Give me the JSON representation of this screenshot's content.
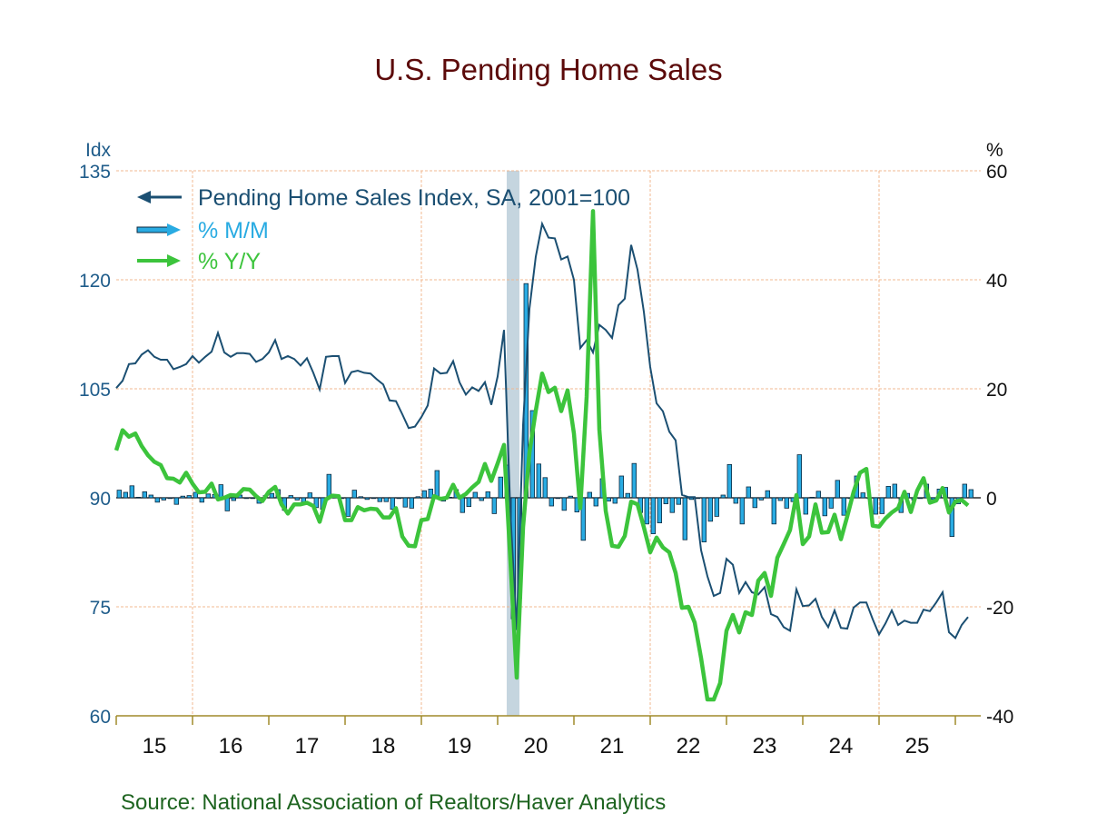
{
  "chart_data": {
    "type": "bar+line",
    "title": "U.S. Pending Home Sales",
    "source": "Source:  National Association of Realtors/Haver Analytics",
    "left_axis": {
      "unit_label": "Idx",
      "range": [
        60,
        135
      ],
      "ticks": [
        60,
        75,
        90,
        105,
        120,
        135
      ]
    },
    "right_axis": {
      "unit_label": "%",
      "range": [
        -40,
        60
      ],
      "ticks": [
        -40,
        -20,
        0,
        20,
        40,
        60
      ]
    },
    "x_axis": {
      "tick_labels": [
        "15",
        "16",
        "17",
        "18",
        "19",
        "20",
        "21",
        "22",
        "23",
        "24",
        "25"
      ],
      "start": "2015-01",
      "frequency": "monthly"
    },
    "grid": true,
    "legend_placement": "top-left",
    "recession_shading": {
      "start": "2020-02",
      "end": "2020-04",
      "color": "#c5d5df"
    },
    "series": [
      {
        "name": "Pending Home Sales Index, SA, 2001=100",
        "axis": "left",
        "kind": "line",
        "color": "#1b4f72",
        "legend_icon": "arrow-left",
        "values": [
          105.1,
          106.1,
          108.4,
          108.5,
          109.7,
          110.3,
          109.4,
          109.0,
          109.0,
          107.7,
          108.0,
          108.4,
          109.5,
          108.6,
          109.4,
          110.1,
          112.7,
          110.0,
          109.4,
          109.9,
          109.9,
          109.8,
          108.7,
          109.1,
          110.0,
          111.7,
          109.1,
          109.5,
          109.1,
          108.2,
          109.2,
          107.2,
          104.9,
          109.4,
          109.5,
          109.5,
          105.8,
          107.3,
          107.5,
          107.2,
          107.1,
          106.3,
          105.6,
          103.4,
          103.3,
          101.5,
          99.6,
          99.8,
          101.1,
          102.7,
          107.8,
          107.1,
          107.2,
          108.8,
          105.9,
          104.2,
          105.2,
          104.7,
          105.9,
          102.8,
          106.7,
          113.1,
          88.0,
          71.8,
          100.0,
          116.0,
          123.2,
          127.7,
          125.8,
          125.7,
          122.8,
          123.2,
          120.0,
          110.6,
          111.7,
          110.0,
          113.8,
          113.1,
          112.0,
          116.5,
          117.4,
          124.8,
          121.4,
          115.6,
          108.0,
          103.0,
          101.9,
          99.1,
          97.9,
          90.4,
          90.1,
          90.1,
          82.8,
          79.2,
          76.5,
          76.9,
          81.6,
          80.8,
          76.9,
          78.4,
          77.0,
          76.7,
          77.7,
          74.0,
          73.6,
          72.2,
          71.7,
          77.4,
          75.1,
          75.2,
          76.1,
          73.6,
          72.2,
          74.5,
          72.1,
          72.0,
          74.9,
          75.6,
          75.6,
          73.3,
          71.2,
          72.7,
          74.5,
          72.5,
          73.1,
          72.8,
          72.8,
          74.6,
          74.4,
          75.6,
          77.0,
          71.5,
          70.7,
          72.5,
          73.6
        ]
      },
      {
        "name": "% M/M",
        "axis": "right",
        "kind": "bar",
        "color": "#29abe2",
        "legend_icon": "arrow-right",
        "values": [
          1.4,
          1.0,
          2.2,
          0.1,
          1.1,
          0.5,
          -0.8,
          -0.4,
          0.0,
          -1.2,
          0.3,
          0.4,
          1.0,
          -0.8,
          0.7,
          0.6,
          2.4,
          -2.4,
          -0.5,
          0.5,
          0.0,
          -0.1,
          -1.0,
          0.4,
          0.8,
          1.5,
          -2.3,
          0.4,
          -0.4,
          -0.8,
          0.9,
          -1.8,
          -2.1,
          4.3,
          0.1,
          0.0,
          -3.4,
          1.4,
          0.2,
          -0.3,
          -0.1,
          -0.7,
          -0.7,
          -2.1,
          -0.1,
          -1.7,
          -1.9,
          0.2,
          1.3,
          1.6,
          5.0,
          -0.6,
          0.1,
          1.5,
          -2.7,
          -1.6,
          1.0,
          -0.5,
          1.1,
          -2.9,
          3.8,
          6.0,
          -22.2,
          -18.4,
          39.3,
          16.0,
          6.2,
          3.7,
          -1.5,
          -0.1,
          -2.3,
          0.3,
          -2.6,
          -7.8,
          1.0,
          -1.5,
          3.5,
          -0.6,
          -1.0,
          4.0,
          0.8,
          6.3,
          -2.7,
          -4.8,
          -6.6,
          -4.6,
          -1.1,
          -2.7,
          -1.2,
          -7.7,
          -0.3,
          0.0,
          -8.1,
          -4.3,
          -3.4,
          0.5,
          6.1,
          -1.0,
          -4.8,
          2.0,
          -1.8,
          -0.4,
          1.3,
          -4.8,
          -0.5,
          -1.9,
          -0.7,
          7.9,
          -3.0,
          0.1,
          1.2,
          -3.3,
          -1.9,
          3.2,
          -3.2,
          -0.1,
          4.0,
          0.9,
          0.0,
          -3.0,
          -2.9,
          2.1,
          2.5,
          -2.7,
          0.8,
          -0.4,
          0.0,
          2.5,
          -0.3,
          1.6,
          1.9,
          -7.1,
          -1.1,
          2.5,
          1.5
        ]
      },
      {
        "name": "% Y/Y",
        "axis": "right",
        "kind": "line",
        "color": "#3cc43c",
        "legend_icon": "arrow-right",
        "values": [
          8.7,
          12.4,
          11.2,
          11.8,
          9.5,
          7.8,
          6.6,
          6.0,
          3.6,
          3.5,
          2.8,
          4.6,
          2.6,
          1.0,
          1.1,
          2.6,
          -0.3,
          0.0,
          0.5,
          0.4,
          1.6,
          1.5,
          0.3,
          -0.6,
          1.1,
          2.0,
          -1.2,
          -2.9,
          -1.2,
          -1.2,
          -0.9,
          -1.5,
          -4.4,
          -0.3,
          0.4,
          0.3,
          -4.1,
          -4.1,
          -1.7,
          -2.3,
          -2.0,
          -2.1,
          -3.6,
          -3.6,
          -1.9,
          -7.1,
          -8.8,
          -8.9,
          -4.1,
          -3.9,
          0.3,
          -0.2,
          0.0,
          2.4,
          0.0,
          0.7,
          1.9,
          2.9,
          6.2,
          3.1,
          6.3,
          9.7,
          -11.5,
          -33.0,
          -5.4,
          8.3,
          16.0,
          22.8,
          19.4,
          20.2,
          15.9,
          19.7,
          11.8,
          -1.9,
          18.5,
          52.6,
          12.5,
          -2.4,
          -8.8,
          -9.0,
          -7.0,
          -0.7,
          -1.2,
          -5.4,
          -10.0,
          -7.3,
          -9.1,
          -10.0,
          -13.8,
          -20.2,
          -20.0,
          -22.9,
          -29.4,
          -37.0,
          -37.0,
          -34.0,
          -24.4,
          -21.5,
          -24.7,
          -21.0,
          -21.5,
          -15.2,
          -13.8,
          -18.0,
          -11.0,
          -8.5,
          -5.9,
          0.5,
          -8.5,
          -7.1,
          -1.2,
          -6.4,
          -6.3,
          -3.1,
          -7.6,
          -3.4,
          1.1,
          4.6,
          5.3,
          -5.1,
          -5.3,
          -3.8,
          -2.7,
          -1.9,
          1.1,
          -2.6,
          1.3,
          3.6,
          -0.9,
          -0.5,
          1.8,
          -2.7,
          -0.7,
          -0.4,
          -1.4
        ]
      }
    ]
  }
}
